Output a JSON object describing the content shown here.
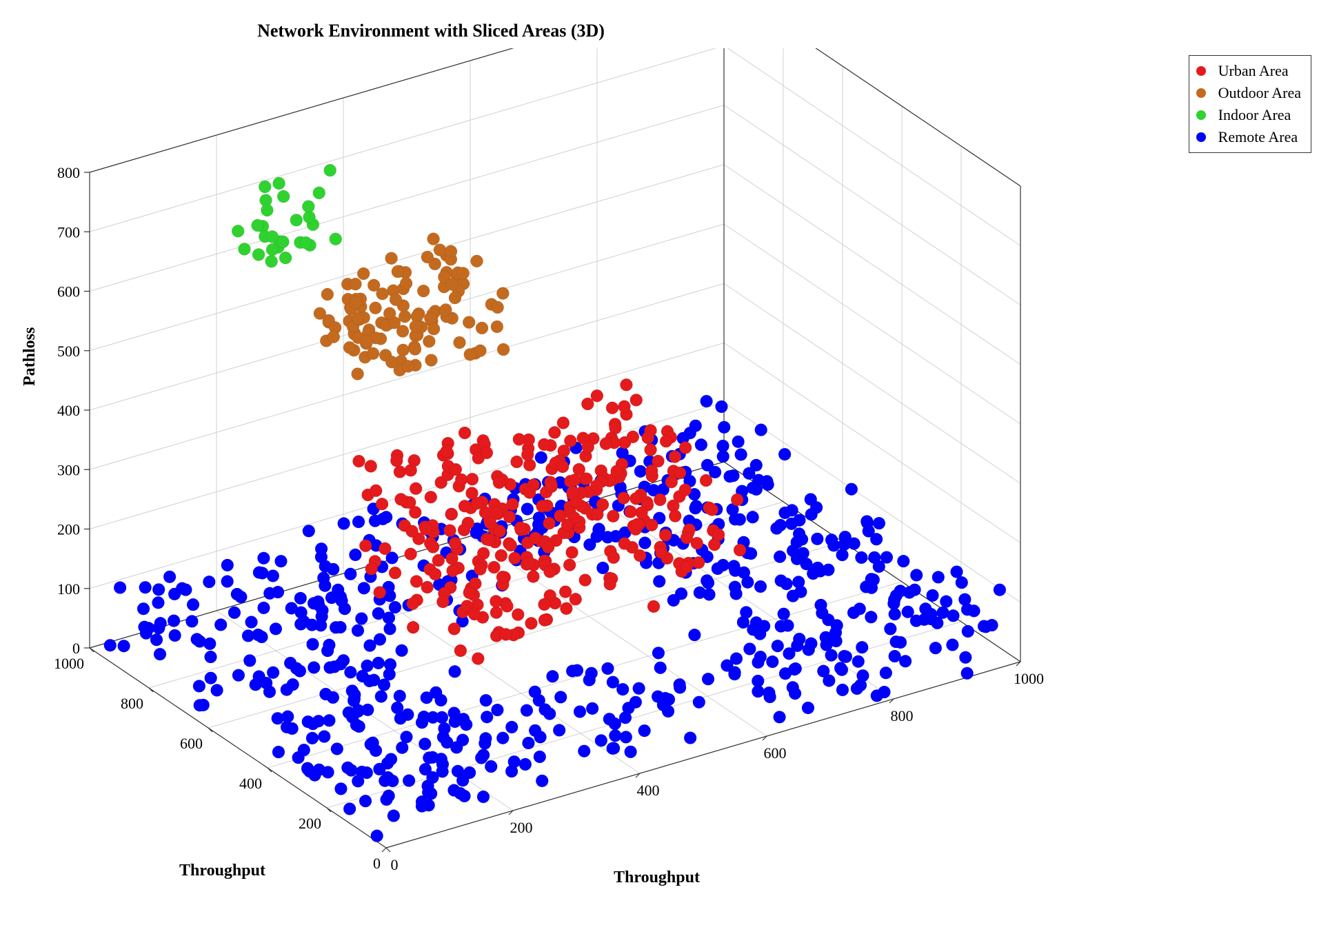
{
  "chart": {
    "type": "scatter3d",
    "title": "Network Environment with Sliced Areas (3D)",
    "title_fontsize": 26,
    "title_fontweight": "bold",
    "background_color": "#ffffff",
    "grid_color": "#b3b3b3",
    "axis_line_color": "#333333",
    "tick_fontsize": 22,
    "label_fontsize": 24,
    "marker_size": 9,
    "marker_shape": "circle",
    "axes": {
      "x": {
        "label": "Throughput",
        "min": 0,
        "max": 1000,
        "ticks": [
          0,
          200,
          400,
          600,
          800,
          1000
        ]
      },
      "y": {
        "label": "Throughput",
        "min": 0,
        "max": 1000,
        "ticks": [
          0,
          200,
          400,
          600,
          800,
          1000
        ]
      },
      "z": {
        "label": "Pathloss",
        "min": 0,
        "max": 800,
        "ticks": [
          0,
          100,
          200,
          300,
          400,
          500,
          600,
          700,
          800
        ]
      }
    },
    "view": {
      "azimuth_deg": -37.5,
      "elevation_deg": 30
    },
    "aspect_ratio": "1942:1371",
    "legend": {
      "position": "outside-top-right",
      "border_color": "#333333",
      "background_color": "#ffffff",
      "fontsize": 22,
      "items": [
        {
          "label": "Urban Area",
          "color": "#e41a1c"
        },
        {
          "label": "Outdoor Area",
          "color": "#c46a1f"
        },
        {
          "label": "Indoor Area",
          "color": "#2fd22f"
        },
        {
          "label": "Remote Area",
          "color": "#0000ff"
        }
      ]
    },
    "series": [
      {
        "name": "Remote Area",
        "color": "#0000ff",
        "generator": {
          "type": "uniform_random_with_hole",
          "n_points": 620,
          "x_range": [
            0,
            1000
          ],
          "y_range": [
            0,
            1000
          ],
          "hole": {
            "x_range": [
              250,
              700
            ],
            "y_range": [
              250,
              700
            ]
          },
          "z_range": [
            0,
            120
          ]
        }
      },
      {
        "name": "Urban Area",
        "color": "#e41a1c",
        "generator": {
          "type": "uniform_random",
          "n_points": 300,
          "x_range": [
            250,
            700
          ],
          "y_range": [
            250,
            700
          ],
          "z_range": [
            130,
            340
          ]
        }
      },
      {
        "name": "Outdoor Area",
        "color": "#c46a1f",
        "generator": {
          "type": "uniform_random",
          "n_points": 110,
          "x_range": [
            300,
            520
          ],
          "y_range": [
            700,
            900
          ],
          "z_range": [
            430,
            580
          ]
        }
      },
      {
        "name": "Indoor Area",
        "color": "#2fd22f",
        "generator": {
          "type": "uniform_random",
          "n_points": 28,
          "x_range": [
            200,
            360
          ],
          "y_range": [
            850,
            980
          ],
          "z_range": [
            610,
            720
          ]
        }
      }
    ]
  }
}
